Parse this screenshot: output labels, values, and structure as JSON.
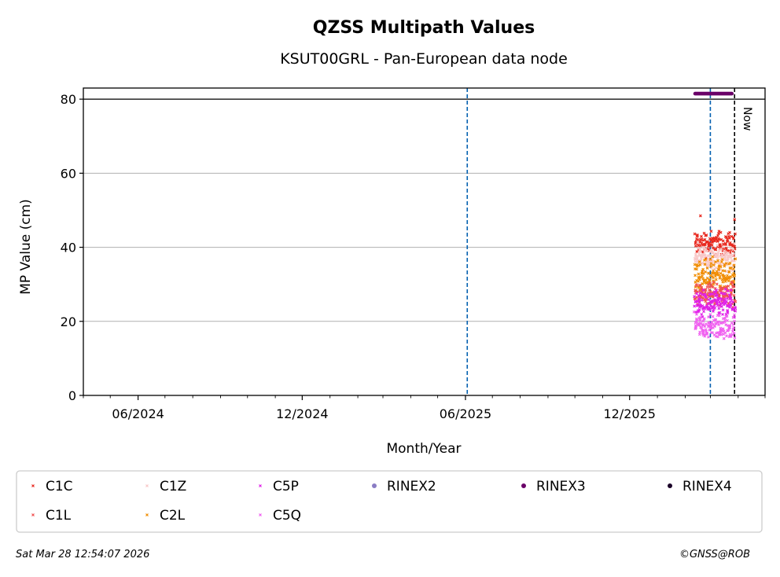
{
  "footer": {
    "timestamp": "Sat Mar 28 12:54:07 2026",
    "copyright": "©GNSS@ROB"
  },
  "chart_data": {
    "type": "scatter",
    "title": "QZSS Multipath Values",
    "subtitle": "KSUT00GRL - Pan-European data node",
    "xlabel": "Month/Year",
    "ylabel": "MP Value (cm)",
    "ylim": [
      0,
      83
    ],
    "xlim": [
      "2024-04-01",
      "2026-05-01"
    ],
    "grid": "horizontal",
    "legend_position": "bottom",
    "x_ticks": [
      "2024-06-01",
      "2024-12-01",
      "2025-06-01",
      "2025-12-01"
    ],
    "x_tick_labels": [
      "06/2024",
      "12/2024",
      "06/2025",
      "12/2025"
    ],
    "y_ticks": [
      0,
      20,
      40,
      60,
      80
    ],
    "y_tick_labels": [
      "0",
      "20",
      "40",
      "60",
      "80"
    ],
    "reference_lines": [
      {
        "type": "horizontal",
        "y": 80,
        "color": "#000000",
        "style": "solid"
      },
      {
        "type": "vertical",
        "x": "2025-06-03",
        "color": "#0060b0",
        "style": "dashed"
      },
      {
        "type": "vertical",
        "x": "2026-03-01",
        "color": "#0060b0",
        "style": "dashed"
      },
      {
        "type": "vertical",
        "x": "2026-03-28",
        "color": "#000000",
        "style": "dashed",
        "label": "Now"
      }
    ],
    "legend": [
      {
        "name": "C1C",
        "color": "#e8281e",
        "marker": "x"
      },
      {
        "name": "C1Z",
        "color": "#f8c8c8",
        "marker": "x"
      },
      {
        "name": "C5P",
        "color": "#e020e8",
        "marker": "x"
      },
      {
        "name": "RINEX2",
        "color": "#8a7cc4",
        "marker": "dot"
      },
      {
        "name": "RINEX3",
        "color": "#6a0068",
        "marker": "dot"
      },
      {
        "name": "RINEX4",
        "color": "#1a0028",
        "marker": "dot"
      },
      {
        "name": "C1L",
        "color": "#f05050",
        "marker": "x"
      },
      {
        "name": "C2L",
        "color": "#f08c00",
        "marker": "x"
      },
      {
        "name": "C5Q",
        "color": "#f060f0",
        "marker": "x"
      }
    ],
    "series": [
      {
        "name": "C1C",
        "color": "#e8281e",
        "x_range": [
          "2026-02-12",
          "2026-03-28"
        ],
        "mean": 41,
        "spread": 2.4,
        "outliers": [
          {
            "x": "2026-02-18",
            "y": 48.5
          },
          {
            "x": "2026-03-28",
            "y": 47.5
          }
        ]
      },
      {
        "name": "C1Z",
        "color": "#f8c8c8",
        "x_range": [
          "2026-02-12",
          "2026-03-28"
        ],
        "mean": 37,
        "spread": 2.2
      },
      {
        "name": "C2L",
        "color": "#f08c00",
        "x_range": [
          "2026-02-12",
          "2026-03-28"
        ],
        "mean": 32.5,
        "spread": 3.0
      },
      {
        "name": "C1L",
        "color": "#f05050",
        "x_range": [
          "2026-02-12",
          "2026-03-28"
        ],
        "mean": 27.5,
        "spread": 2.2
      },
      {
        "name": "C5P",
        "color": "#e020e8",
        "x_range": [
          "2026-02-12",
          "2026-03-28"
        ],
        "mean": 24.5,
        "spread": 2.6
      },
      {
        "name": "C5Q",
        "color": "#f060f0",
        "x_range": [
          "2026-02-12",
          "2026-03-28"
        ],
        "mean": 18.5,
        "spread": 2.3
      },
      {
        "name": "RINEX3",
        "color": "#6a0068",
        "x_range": [
          "2026-02-12",
          "2026-03-25"
        ],
        "constant": 81.5
      }
    ]
  }
}
